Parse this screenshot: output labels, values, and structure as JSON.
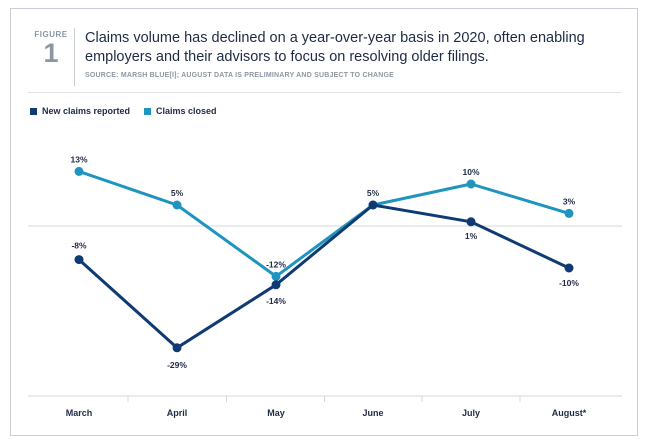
{
  "figure": {
    "label": "FIGURE",
    "number": "1",
    "title": "Claims volume has declined on a year-over-year basis in 2020, often enabling employers and their advisors to focus on resolving older filings.",
    "source": "SOURCE: MARSH BLUE[i]; AUGUST DATA IS PRELIMINARY AND SUBJECT TO CHANGE"
  },
  "colors": {
    "new_claims": "#0f3a73",
    "claims_closed": "#1f94bf",
    "text": "#1f2a44",
    "muted": "#8d96a3"
  },
  "chart_data": {
    "type": "line",
    "title": "",
    "xlabel": "",
    "ylabel": "",
    "categories": [
      "March",
      "April",
      "May",
      "June",
      "July",
      "August*"
    ],
    "ylim": [
      -35,
      20
    ],
    "zero_line": true,
    "grid": false,
    "legend_position": "top-left",
    "series": [
      {
        "name": "New claims reported",
        "color": "#0f3a73",
        "values": [
          -8,
          -29,
          -14,
          5,
          1,
          -10
        ],
        "labels": [
          "-8%",
          "-29%",
          "-14%",
          "",
          "1%",
          "-10%"
        ]
      },
      {
        "name": "Claims closed",
        "color": "#1f94bf",
        "values": [
          13,
          5,
          -12,
          5,
          10,
          3
        ],
        "labels": [
          "13%",
          "5%",
          "-12%",
          "5%",
          "10%",
          "3%"
        ]
      }
    ]
  }
}
